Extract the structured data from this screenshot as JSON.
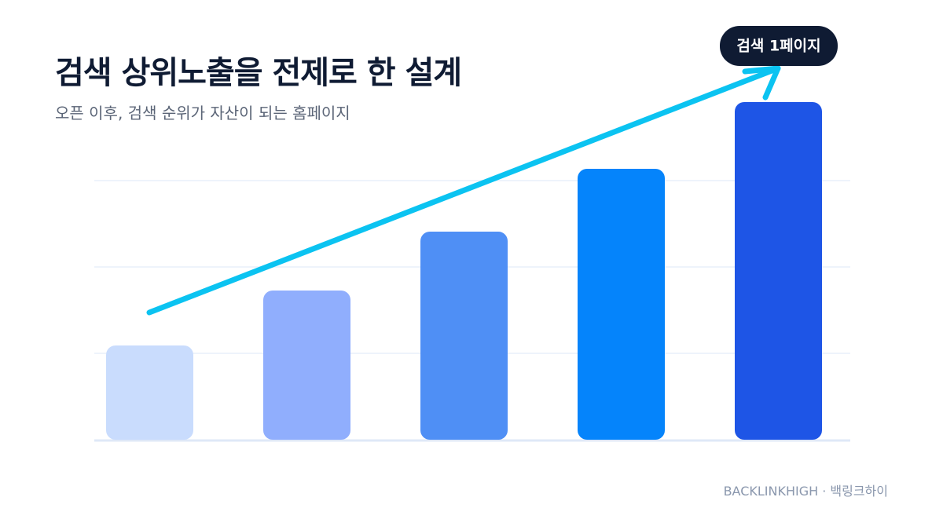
{
  "title": "검색 상위노출을 전제로 한 설계",
  "subtitle": "오픈 이후, 검색 순위가 자산이 되는 홈페이지",
  "footer": "BACKLINKHIGH · 백링크하이",
  "chart_data": {
    "type": "bar",
    "categories": [
      "",
      "",
      "",
      "",
      ""
    ],
    "values": [
      1.2,
      1.9,
      2.65,
      3.45,
      4.3
    ],
    "ylim": [
      0,
      4.3
    ],
    "grid": true,
    "bar_colors": [
      "#c9dcfd",
      "#90aefd",
      "#4f8ff5",
      "#0584fb",
      "#1e55e6"
    ],
    "trend": {
      "from_bar": 0,
      "to_bar": 4,
      "color": "#0bc3f1"
    },
    "annotation": {
      "text": "검색 1페이지",
      "background": "#0f1b33",
      "color": "#ffffff"
    }
  },
  "colors": {
    "title": "#0f1b33",
    "subtitle": "#5b6577",
    "grid": "#eef3fb",
    "baseline": "#dfe8f7",
    "footer": "#8a97ad"
  }
}
